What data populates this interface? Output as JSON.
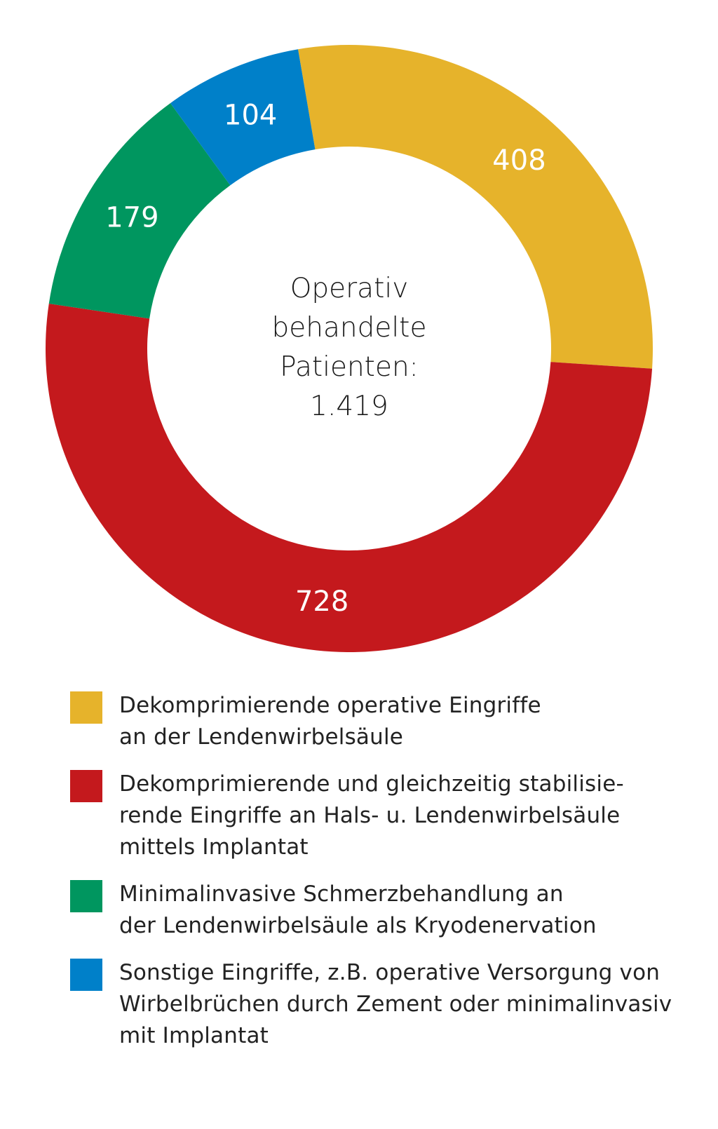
{
  "chart_data": {
    "type": "pie",
    "variant": "donut",
    "center_label": [
      "Operativ",
      "behandelte",
      "Patienten:",
      "1.419"
    ],
    "total": 1419,
    "slices": [
      {
        "value": 408,
        "label": "408",
        "color": "#E6B32B",
        "legend": "Dekomprimierende operative Eingriffe\nan der Lendenwirbelsäule"
      },
      {
        "value": 728,
        "label": "728",
        "color": "#C4191D",
        "legend": "Dekomprimierende und gleichzeitig stabilisie-\nrende Eingriffe an Hals- u. Lendenwirbelsäule\nmittels Implantat"
      },
      {
        "value": 179,
        "label": "179",
        "color": "#00965F",
        "legend": "Minimalinvasive Schmerzbehandlung an\nder Lendenwirbelsäule als Kryodenervation"
      },
      {
        "value": 104,
        "label": "104",
        "color": "#0080C9",
        "legend": "Sonstige Eingriffe, z.B. operative Versorgung von\nWirbelbrüchen durch Zement oder minimalinvasiv\nmit Implantat"
      }
    ],
    "legend_position": "bottom"
  }
}
